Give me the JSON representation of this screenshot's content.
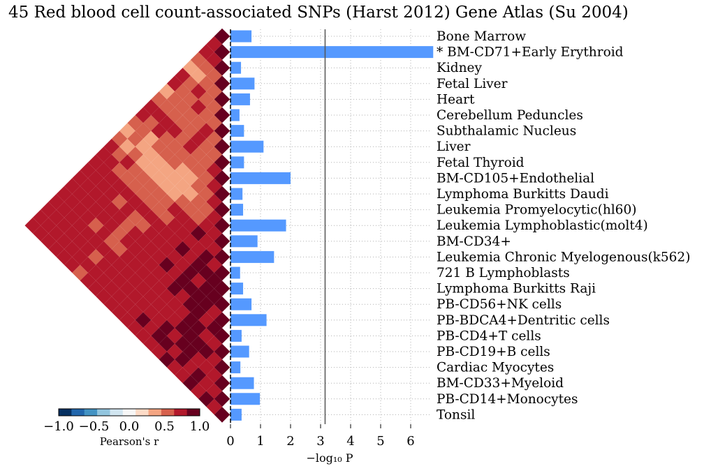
{
  "title": "45 Red blood cell count-associated SNPs (Harst 2012) Gene Atlas (Su 2004)",
  "chart_data": {
    "type": "bar",
    "orientation": "horizontal",
    "categories": [
      "Bone Marrow",
      "* BM-CD71+Early Erythroid",
      "Kidney",
      "Fetal Liver",
      "Heart",
      "Cerebellum Peduncles",
      "Subthalamic Nucleus",
      "Liver",
      "Fetal Thyroid",
      "BM-CD105+Endothelial",
      "Lymphoma Burkitts Daudi",
      "Leukemia Promyelocytic(hl60)",
      "Leukemia Lymphoblastic(molt4)",
      "BM-CD34+",
      "Leukemia Chronic Myelogenous(k562)",
      "721 B Lymphoblasts",
      "Lymphoma Burkitts Raji",
      "PB-CD56+NK cells",
      "PB-BDCA4+Dentritic cells",
      "PB-CD4+T cells",
      "PB-CD19+B cells",
      "Cardiac Myocytes",
      "BM-CD33+Myeloid",
      "PB-CD14+Monocytes",
      "Tonsil"
    ],
    "values": [
      0.7,
      6.75,
      0.35,
      0.8,
      0.65,
      0.3,
      0.45,
      1.1,
      0.45,
      2.0,
      0.4,
      0.42,
      1.85,
      0.9,
      1.45,
      0.32,
      0.42,
      0.7,
      1.2,
      0.37,
      0.62,
      0.33,
      0.78,
      0.98,
      0.37
    ],
    "xlabel": "−log₁₀ P",
    "xlim": [
      0,
      6.75
    ],
    "xticks": [
      "0",
      "1",
      "2",
      "3",
      "4",
      "5",
      "6"
    ],
    "threshold": 3.15,
    "bar_color": "#5599ff",
    "threshold_color": "#555555",
    "grid": "dotted",
    "correlation_heatmap": {
      "type": "heatmap",
      "shape": "lower-triangle rotated 45°",
      "matrix_rows": [
        [
          1.0
        ],
        [
          0.85,
          1.0
        ],
        [
          0.75,
          0.8,
          1.0
        ],
        [
          0.55,
          0.6,
          0.65,
          1.0
        ],
        [
          0.35,
          0.4,
          0.5,
          0.55,
          1.0
        ],
        [
          0.75,
          0.6,
          0.85,
          0.65,
          0.6,
          1.0
        ],
        [
          0.7,
          0.65,
          0.6,
          0.7,
          0.55,
          0.6,
          1.0
        ],
        [
          0.45,
          0.6,
          0.55,
          0.6,
          0.5,
          0.85,
          0.6,
          1.0
        ],
        [
          0.6,
          0.65,
          0.6,
          0.55,
          0.6,
          0.7,
          0.55,
          0.65,
          1.0
        ],
        [
          0.75,
          0.7,
          0.75,
          0.7,
          0.65,
          0.7,
          0.6,
          0.65,
          0.7,
          1.0
        ],
        [
          0.7,
          0.65,
          0.7,
          0.6,
          0.55,
          0.65,
          0.6,
          0.6,
          0.65,
          0.75,
          1.0
        ],
        [
          0.6,
          0.55,
          0.45,
          0.5,
          0.55,
          0.5,
          0.45,
          0.45,
          0.55,
          0.6,
          0.7,
          1.0
        ],
        [
          0.45,
          0.5,
          0.45,
          0.4,
          0.45,
          0.4,
          0.45,
          0.4,
          0.45,
          0.5,
          0.6,
          0.7,
          1.0
        ],
        [
          0.5,
          0.45,
          0.5,
          0.45,
          0.4,
          0.45,
          0.4,
          0.45,
          0.5,
          0.55,
          0.65,
          0.85,
          0.7,
          1.0
        ],
        [
          0.7,
          0.65,
          0.7,
          0.6,
          0.55,
          0.6,
          0.55,
          0.6,
          0.7,
          0.75,
          0.8,
          0.9,
          0.75,
          0.85,
          1.0
        ],
        [
          0.75,
          0.7,
          0.65,
          0.65,
          0.6,
          0.65,
          0.6,
          0.6,
          0.65,
          0.75,
          0.8,
          0.85,
          0.8,
          0.9,
          0.85,
          1.0
        ],
        [
          0.85,
          0.8,
          0.8,
          0.75,
          0.7,
          0.75,
          0.7,
          0.7,
          0.75,
          0.8,
          0.85,
          0.95,
          0.85,
          0.95,
          0.9,
          0.9,
          1.0
        ],
        [
          0.75,
          0.7,
          0.75,
          0.7,
          0.65,
          0.7,
          0.6,
          0.65,
          0.7,
          0.75,
          0.8,
          0.85,
          0.85,
          0.9,
          0.85,
          0.95,
          0.9,
          1.0
        ],
        [
          0.8,
          0.75,
          0.8,
          0.75,
          0.7,
          0.75,
          0.65,
          0.7,
          0.75,
          0.8,
          0.85,
          0.9,
          0.85,
          0.95,
          0.9,
          0.9,
          0.95,
          0.85,
          1.0
        ],
        [
          0.8,
          0.75,
          0.75,
          0.7,
          0.7,
          0.7,
          0.65,
          0.7,
          0.75,
          0.8,
          0.8,
          0.85,
          0.8,
          0.9,
          0.85,
          0.9,
          0.9,
          0.85,
          0.9,
          1.0
        ],
        [
          0.75,
          0.7,
          0.75,
          0.7,
          0.65,
          0.7,
          0.65,
          0.65,
          0.7,
          0.8,
          0.8,
          0.85,
          0.8,
          0.85,
          0.85,
          0.85,
          0.9,
          0.95,
          0.85,
          0.85,
          1.0
        ],
        [
          0.8,
          0.75,
          0.8,
          0.75,
          0.7,
          0.75,
          0.7,
          0.7,
          0.75,
          0.8,
          0.85,
          0.85,
          0.8,
          0.85,
          0.85,
          0.85,
          0.9,
          0.9,
          0.95,
          0.9,
          0.85,
          1.0
        ],
        [
          0.75,
          0.7,
          0.75,
          0.7,
          0.7,
          0.7,
          0.65,
          0.7,
          0.75,
          0.8,
          0.8,
          0.85,
          0.8,
          0.85,
          0.85,
          0.9,
          0.85,
          0.9,
          0.9,
          0.85,
          0.85,
          0.85,
          1.0
        ],
        [
          0.8,
          0.75,
          0.8,
          0.75,
          0.7,
          0.75,
          0.7,
          0.75,
          0.8,
          0.85,
          0.8,
          0.85,
          0.85,
          0.9,
          0.85,
          0.9,
          0.9,
          0.85,
          0.95,
          0.85,
          0.9,
          0.85,
          0.85,
          1.0
        ],
        [
          0.75,
          0.7,
          0.75,
          0.7,
          0.7,
          0.7,
          0.65,
          0.7,
          0.75,
          0.8,
          0.8,
          0.85,
          0.8,
          0.85,
          0.85,
          0.85,
          0.85,
          0.9,
          0.85,
          0.85,
          0.9,
          0.85,
          0.9,
          0.85,
          1.0
        ]
      ],
      "colorbar": {
        "label": "Pearson's r",
        "ticks": [
          "−1.0",
          "−0.5",
          "0.0",
          "0.5",
          "1.0"
        ],
        "range": [
          -1.0,
          1.0
        ],
        "colors": [
          "#053061",
          "#2166ac",
          "#4393c3",
          "#92c5de",
          "#d1e5f0",
          "#f7f7f7",
          "#fddbc7",
          "#f4a582",
          "#d6604d",
          "#b2182b",
          "#67001f"
        ]
      }
    }
  }
}
